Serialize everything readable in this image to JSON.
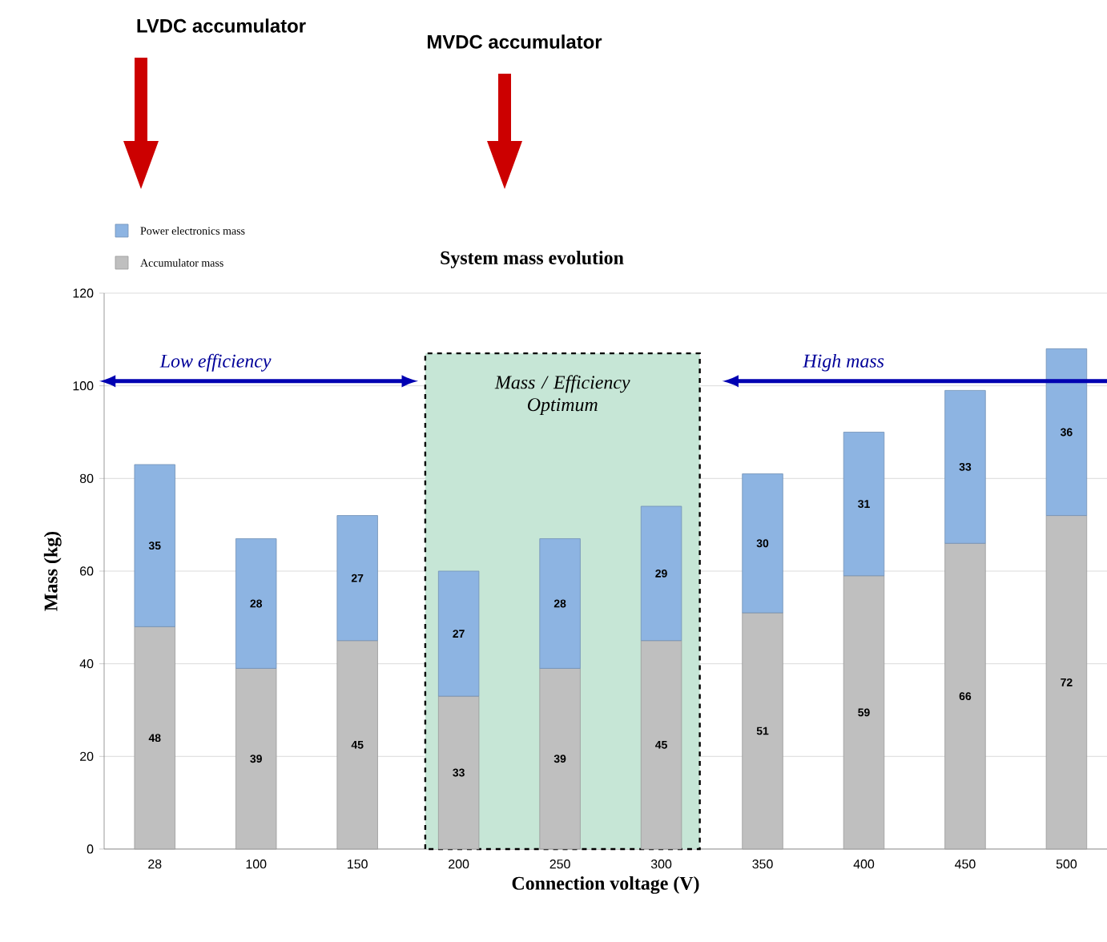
{
  "chart_data": {
    "type": "bar",
    "stacked": true,
    "title": "System mass evolution",
    "xlabel": "Connection voltage (V)",
    "ylabel": "Mass (kg)",
    "categories": [
      "28",
      "100",
      "150",
      "200",
      "250",
      "300",
      "350",
      "400",
      "450",
      "500"
    ],
    "series": [
      {
        "name": "Accumulator mass",
        "color": "#bfbfbf",
        "values": [
          48,
          39,
          45,
          33,
          39,
          45,
          51,
          59,
          66,
          72
        ]
      },
      {
        "name": "Power electronics mass",
        "color": "#8db4e2",
        "values": [
          35,
          28,
          27,
          27,
          28,
          29,
          30,
          31,
          33,
          36
        ]
      }
    ],
    "ylim": [
      0,
      120
    ],
    "yticks": [
      0,
      20,
      40,
      60,
      80,
      100,
      120
    ],
    "grid": "y",
    "legend": "top left",
    "data_labels": true,
    "bands": [
      {
        "axis": "x",
        "from": "200",
        "to": "300",
        "label": "Mass / Efficiency Optimum",
        "color": "#c6e6d6"
      }
    ],
    "annotations": [
      "LVDC accumulator",
      "MVDC accumulator",
      "Low efficiency",
      "High mass"
    ]
  }
}
